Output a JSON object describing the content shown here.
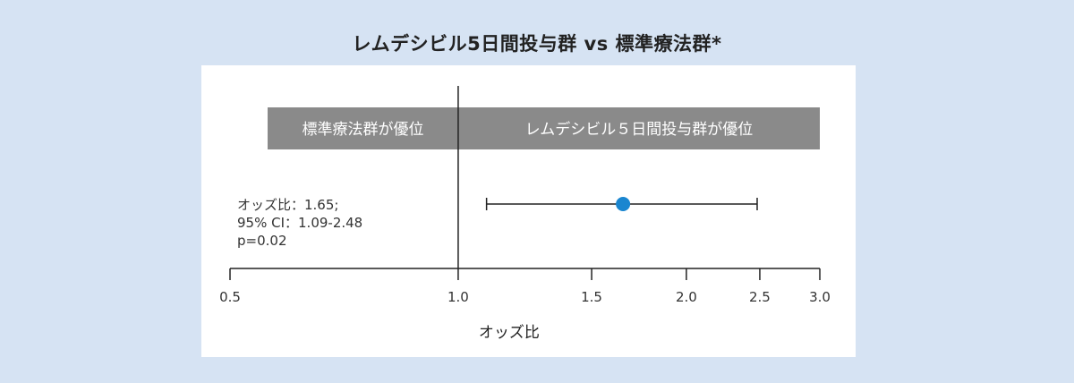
{
  "title": "レムデシビル5日間投与群 vs 標準療法群*",
  "colors": {
    "background": "#d6e3f3",
    "panel": "#ffffff",
    "header_band": "#8a8a8a",
    "point": "#1a86d0",
    "axis": "#222222"
  },
  "chart_data": {
    "type": "forest",
    "title": "レムデシビル5日間投与群 vs 標準療法群*",
    "xlabel": "オッズ比",
    "x_scale": "log",
    "xlim": [
      0.5,
      3.0
    ],
    "ticks": [
      0.5,
      1.0,
      1.5,
      2.0,
      2.5,
      3.0
    ],
    "tick_labels": [
      "0.5",
      "1.0",
      "1.5",
      "2.0",
      "2.5",
      "3.0"
    ],
    "reference_line": 1.0,
    "favors_left": "標準療法群が優位",
    "favors_right": "レムデシビル５日間投与群が優位",
    "estimate": {
      "or": 1.65,
      "ci_low": 1.09,
      "ci_high": 2.48
    },
    "stats_lines": [
      "オッズ比：1.65;",
      "95% CI：1.09-2.48",
      "p=0.02"
    ]
  }
}
